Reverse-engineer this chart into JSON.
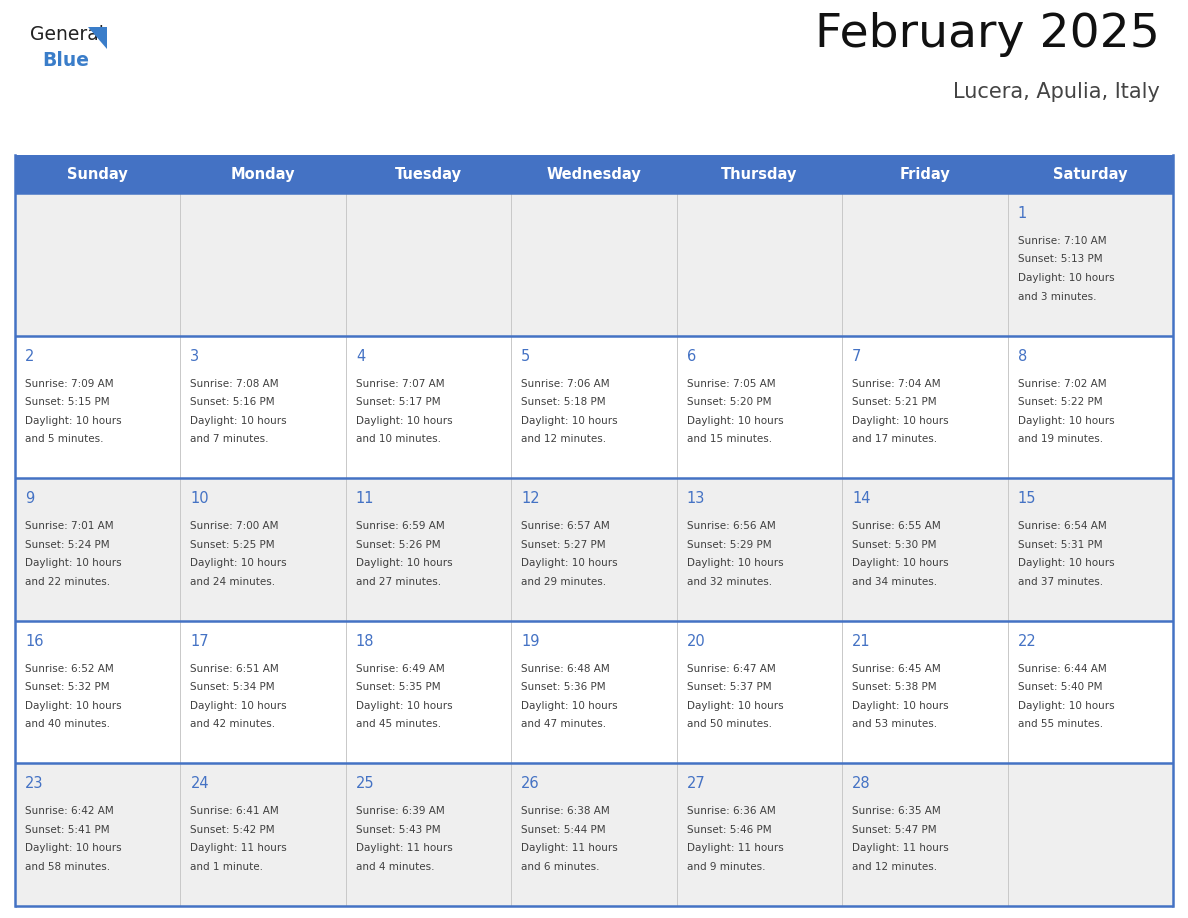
{
  "title": "February 2025",
  "subtitle": "Lucera, Apulia, Italy",
  "days_of_week": [
    "Sunday",
    "Monday",
    "Tuesday",
    "Wednesday",
    "Thursday",
    "Friday",
    "Saturday"
  ],
  "header_bg": "#4472C4",
  "header_text": "#FFFFFF",
  "row_bg_odd": "#EFEFEF",
  "row_bg_even": "#FFFFFF",
  "border_color": "#4472C4",
  "day_number_color": "#4472C4",
  "info_text_color": "#404040",
  "title_color": "#111111",
  "subtitle_color": "#444444",
  "logo_general_color": "#222222",
  "logo_blue_color": "#3A7DC9",
  "logo_triangle_color": "#3A7DC9",
  "calendar_data": {
    "1": {
      "sunrise": "7:10 AM",
      "sunset": "5:13 PM",
      "daylight_line1": "Daylight: 10 hours",
      "daylight_line2": "and 3 minutes."
    },
    "2": {
      "sunrise": "7:09 AM",
      "sunset": "5:15 PM",
      "daylight_line1": "Daylight: 10 hours",
      "daylight_line2": "and 5 minutes."
    },
    "3": {
      "sunrise": "7:08 AM",
      "sunset": "5:16 PM",
      "daylight_line1": "Daylight: 10 hours",
      "daylight_line2": "and 7 minutes."
    },
    "4": {
      "sunrise": "7:07 AM",
      "sunset": "5:17 PM",
      "daylight_line1": "Daylight: 10 hours",
      "daylight_line2": "and 10 minutes."
    },
    "5": {
      "sunrise": "7:06 AM",
      "sunset": "5:18 PM",
      "daylight_line1": "Daylight: 10 hours",
      "daylight_line2": "and 12 minutes."
    },
    "6": {
      "sunrise": "7:05 AM",
      "sunset": "5:20 PM",
      "daylight_line1": "Daylight: 10 hours",
      "daylight_line2": "and 15 minutes."
    },
    "7": {
      "sunrise": "7:04 AM",
      "sunset": "5:21 PM",
      "daylight_line1": "Daylight: 10 hours",
      "daylight_line2": "and 17 minutes."
    },
    "8": {
      "sunrise": "7:02 AM",
      "sunset": "5:22 PM",
      "daylight_line1": "Daylight: 10 hours",
      "daylight_line2": "and 19 minutes."
    },
    "9": {
      "sunrise": "7:01 AM",
      "sunset": "5:24 PM",
      "daylight_line1": "Daylight: 10 hours",
      "daylight_line2": "and 22 minutes."
    },
    "10": {
      "sunrise": "7:00 AM",
      "sunset": "5:25 PM",
      "daylight_line1": "Daylight: 10 hours",
      "daylight_line2": "and 24 minutes."
    },
    "11": {
      "sunrise": "6:59 AM",
      "sunset": "5:26 PM",
      "daylight_line1": "Daylight: 10 hours",
      "daylight_line2": "and 27 minutes."
    },
    "12": {
      "sunrise": "6:57 AM",
      "sunset": "5:27 PM",
      "daylight_line1": "Daylight: 10 hours",
      "daylight_line2": "and 29 minutes."
    },
    "13": {
      "sunrise": "6:56 AM",
      "sunset": "5:29 PM",
      "daylight_line1": "Daylight: 10 hours",
      "daylight_line2": "and 32 minutes."
    },
    "14": {
      "sunrise": "6:55 AM",
      "sunset": "5:30 PM",
      "daylight_line1": "Daylight: 10 hours",
      "daylight_line2": "and 34 minutes."
    },
    "15": {
      "sunrise": "6:54 AM",
      "sunset": "5:31 PM",
      "daylight_line1": "Daylight: 10 hours",
      "daylight_line2": "and 37 minutes."
    },
    "16": {
      "sunrise": "6:52 AM",
      "sunset": "5:32 PM",
      "daylight_line1": "Daylight: 10 hours",
      "daylight_line2": "and 40 minutes."
    },
    "17": {
      "sunrise": "6:51 AM",
      "sunset": "5:34 PM",
      "daylight_line1": "Daylight: 10 hours",
      "daylight_line2": "and 42 minutes."
    },
    "18": {
      "sunrise": "6:49 AM",
      "sunset": "5:35 PM",
      "daylight_line1": "Daylight: 10 hours",
      "daylight_line2": "and 45 minutes."
    },
    "19": {
      "sunrise": "6:48 AM",
      "sunset": "5:36 PM",
      "daylight_line1": "Daylight: 10 hours",
      "daylight_line2": "and 47 minutes."
    },
    "20": {
      "sunrise": "6:47 AM",
      "sunset": "5:37 PM",
      "daylight_line1": "Daylight: 10 hours",
      "daylight_line2": "and 50 minutes."
    },
    "21": {
      "sunrise": "6:45 AM",
      "sunset": "5:38 PM",
      "daylight_line1": "Daylight: 10 hours",
      "daylight_line2": "and 53 minutes."
    },
    "22": {
      "sunrise": "6:44 AM",
      "sunset": "5:40 PM",
      "daylight_line1": "Daylight: 10 hours",
      "daylight_line2": "and 55 minutes."
    },
    "23": {
      "sunrise": "6:42 AM",
      "sunset": "5:41 PM",
      "daylight_line1": "Daylight: 10 hours",
      "daylight_line2": "and 58 minutes."
    },
    "24": {
      "sunrise": "6:41 AM",
      "sunset": "5:42 PM",
      "daylight_line1": "Daylight: 11 hours",
      "daylight_line2": "and 1 minute."
    },
    "25": {
      "sunrise": "6:39 AM",
      "sunset": "5:43 PM",
      "daylight_line1": "Daylight: 11 hours",
      "daylight_line2": "and 4 minutes."
    },
    "26": {
      "sunrise": "6:38 AM",
      "sunset": "5:44 PM",
      "daylight_line1": "Daylight: 11 hours",
      "daylight_line2": "and 6 minutes."
    },
    "27": {
      "sunrise": "6:36 AM",
      "sunset": "5:46 PM",
      "daylight_line1": "Daylight: 11 hours",
      "daylight_line2": "and 9 minutes."
    },
    "28": {
      "sunrise": "6:35 AM",
      "sunset": "5:47 PM",
      "daylight_line1": "Daylight: 11 hours",
      "daylight_line2": "and 12 minutes."
    }
  },
  "weeks": [
    [
      null,
      null,
      null,
      null,
      null,
      null,
      1
    ],
    [
      2,
      3,
      4,
      5,
      6,
      7,
      8
    ],
    [
      9,
      10,
      11,
      12,
      13,
      14,
      15
    ],
    [
      16,
      17,
      18,
      19,
      20,
      21,
      22
    ],
    [
      23,
      24,
      25,
      26,
      27,
      28,
      null
    ]
  ]
}
